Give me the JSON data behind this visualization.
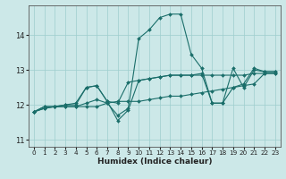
{
  "xlabel": "Humidex (Indice chaleur)",
  "xlim": [
    -0.5,
    23.5
  ],
  "ylim": [
    10.8,
    14.85
  ],
  "yticks": [
    11,
    12,
    13,
    14
  ],
  "xticks": [
    0,
    1,
    2,
    3,
    4,
    5,
    6,
    7,
    8,
    9,
    10,
    11,
    12,
    13,
    14,
    15,
    16,
    17,
    18,
    19,
    20,
    21,
    22,
    23
  ],
  "bg_color": "#cce8e8",
  "grid_color": "#9ecece",
  "line_color": "#1a6e6a",
  "lines": [
    [
      11.8,
      11.9,
      11.95,
      11.95,
      11.95,
      11.95,
      11.95,
      12.05,
      12.1,
      12.1,
      12.1,
      12.15,
      12.2,
      12.25,
      12.25,
      12.3,
      12.35,
      12.4,
      12.45,
      12.5,
      12.55,
      12.6,
      12.9,
      12.9
    ],
    [
      11.8,
      11.9,
      11.95,
      11.95,
      11.95,
      12.05,
      12.15,
      12.05,
      11.7,
      11.9,
      13.9,
      14.15,
      14.5,
      14.6,
      14.6,
      13.45,
      13.05,
      12.05,
      12.05,
      13.05,
      12.5,
      13.0,
      12.95,
      12.95
    ],
    [
      11.8,
      11.95,
      11.95,
      12.0,
      12.0,
      12.5,
      12.55,
      12.1,
      11.55,
      11.85,
      12.7,
      12.75,
      12.8,
      12.85,
      12.85,
      12.85,
      12.9,
      12.05,
      12.05,
      12.5,
      12.6,
      13.05,
      12.95,
      12.95
    ],
    [
      11.8,
      11.95,
      11.95,
      12.0,
      12.05,
      12.5,
      12.55,
      12.1,
      12.05,
      12.65,
      12.7,
      12.75,
      12.8,
      12.85,
      12.85,
      12.85,
      12.85,
      12.85,
      12.85,
      12.85,
      12.85,
      12.9,
      12.9,
      12.9
    ]
  ]
}
